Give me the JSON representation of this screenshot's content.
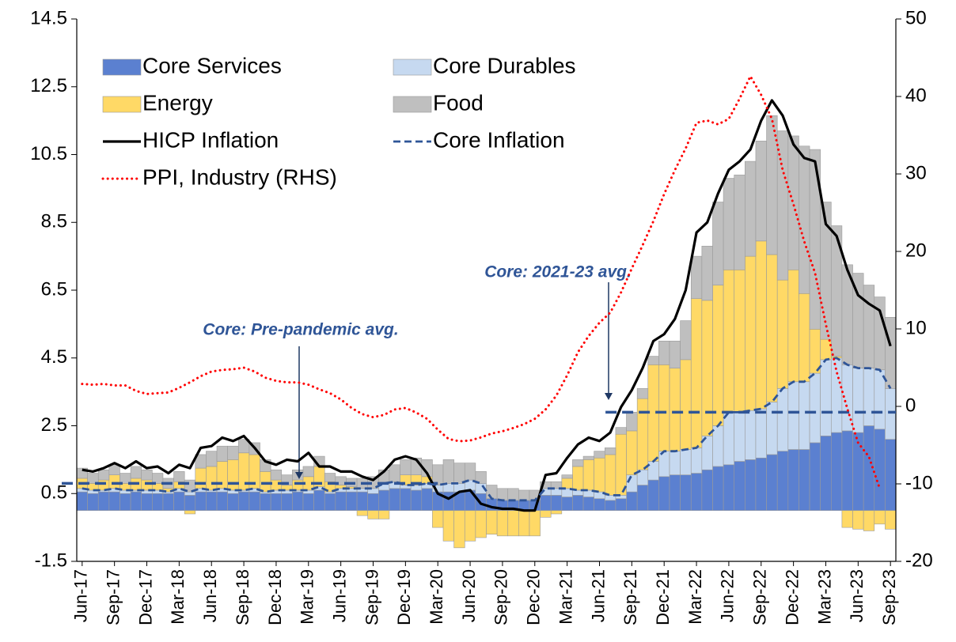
{
  "chart_data": {
    "type": "bar",
    "categories": [
      "Jun-17",
      null,
      null,
      "Sep-17",
      null,
      null,
      "Dec-17",
      null,
      null,
      "Mar-18",
      null,
      null,
      "Jun-18",
      null,
      null,
      "Sep-18",
      null,
      null,
      "Dec-18",
      null,
      null,
      "Mar-19",
      null,
      null,
      "Jun-19",
      null,
      null,
      "Sep-19",
      null,
      null,
      "Dec-19",
      null,
      null,
      "Mar-20",
      null,
      null,
      "Jun-20",
      null,
      null,
      "Sep-20",
      null,
      null,
      "Dec-20",
      null,
      null,
      "Mar-21",
      null,
      null,
      "Jun-21",
      null,
      null,
      "Sep-21",
      null,
      null,
      "Dec-21",
      null,
      null,
      "Mar-22",
      null,
      null,
      "Jun-22",
      null,
      null,
      "Sep-22",
      null,
      null,
      "Dec-22",
      null,
      null,
      "Mar-23",
      null,
      null,
      "Jun-23",
      null,
      null,
      "Sep-23"
    ],
    "series": [
      {
        "name": "Core Services",
        "type": "bar",
        "color": "#5b80d0",
        "values": [
          0.55,
          0.5,
          0.55,
          0.55,
          0.5,
          0.55,
          0.5,
          0.5,
          0.5,
          0.55,
          0.45,
          0.55,
          0.55,
          0.55,
          0.5,
          0.55,
          0.55,
          0.5,
          0.5,
          0.5,
          0.55,
          0.5,
          0.6,
          0.5,
          0.55,
          0.55,
          0.55,
          0.5,
          0.6,
          0.65,
          0.65,
          0.6,
          0.65,
          0.55,
          0.55,
          0.55,
          0.6,
          0.5,
          0.35,
          0.3,
          0.3,
          0.3,
          0.3,
          0.45,
          0.45,
          0.4,
          0.45,
          0.4,
          0.35,
          0.3,
          0.35,
          0.55,
          0.75,
          0.9,
          1.0,
          1.05,
          1.05,
          1.1,
          1.2,
          1.3,
          1.35,
          1.45,
          1.5,
          1.55,
          1.65,
          1.75,
          1.8,
          1.8,
          2.0,
          2.2,
          2.3,
          2.35,
          2.3,
          2.5,
          2.4,
          2.1
        ]
      },
      {
        "name": "Core Durables",
        "type": "bar",
        "color": "#c6d9f0",
        "values": [
          0.1,
          0.1,
          0.05,
          0.1,
          0.1,
          0.05,
          0.1,
          0.1,
          0.05,
          0.1,
          0.1,
          0.1,
          0.05,
          0.1,
          0.1,
          0.05,
          0.1,
          0.05,
          0.1,
          0.1,
          0.05,
          0.1,
          0.1,
          0.05,
          0.1,
          0.1,
          0.1,
          0.15,
          0.2,
          0.2,
          0.1,
          0.15,
          0.15,
          0.2,
          0.25,
          0.25,
          0.3,
          0.3,
          0.0,
          0.0,
          0.0,
          0.0,
          0.0,
          0.2,
          0.2,
          0.25,
          0.15,
          0.2,
          0.2,
          0.15,
          0.1,
          0.5,
          0.45,
          0.55,
          0.75,
          0.7,
          0.75,
          0.75,
          1.0,
          1.2,
          1.55,
          1.45,
          1.45,
          1.45,
          1.55,
          1.85,
          2.0,
          2.0,
          2.05,
          2.25,
          2.2,
          1.95,
          1.9,
          1.7,
          1.75,
          1.5
        ]
      },
      {
        "name": "Energy",
        "type": "bar",
        "color": "#ffd966",
        "values": [
          0.3,
          0.2,
          0.3,
          0.4,
          0.2,
          0.35,
          0.3,
          0.2,
          0.1,
          0.2,
          -0.1,
          0.6,
          0.7,
          0.8,
          0.9,
          1.1,
          1.0,
          0.6,
          0.3,
          0.15,
          0.3,
          0.4,
          0.6,
          0.3,
          0.1,
          0.05,
          -0.15,
          -0.25,
          -0.25,
          0.0,
          0.3,
          0.3,
          0.2,
          -0.5,
          -0.9,
          -1.1,
          -0.9,
          -0.8,
          -0.7,
          -0.75,
          -0.75,
          -0.75,
          -0.75,
          -0.2,
          -0.1,
          0.3,
          0.7,
          0.9,
          1.0,
          1.2,
          1.8,
          1.3,
          2.1,
          2.85,
          2.55,
          2.45,
          2.65,
          4.4,
          4.0,
          4.15,
          4.2,
          4.2,
          4.55,
          4.95,
          4.35,
          3.2,
          3.3,
          2.6,
          1.3,
          0.6,
          0.05,
          -0.5,
          -0.55,
          -0.6,
          -0.4,
          -0.55
        ]
      },
      {
        "name": "Food",
        "type": "bar",
        "color": "#bfbfbf",
        "values": [
          0.3,
          0.3,
          0.3,
          0.3,
          0.3,
          0.35,
          0.3,
          0.3,
          0.3,
          0.3,
          0.35,
          0.4,
          0.45,
          0.45,
          0.4,
          0.4,
          0.35,
          0.35,
          0.3,
          0.3,
          0.3,
          0.3,
          0.3,
          0.25,
          0.25,
          0.25,
          0.3,
          0.35,
          0.4,
          0.5,
          0.45,
          0.5,
          0.5,
          0.6,
          0.7,
          0.6,
          0.5,
          0.35,
          0.4,
          0.35,
          0.35,
          0.3,
          0.3,
          0.2,
          0.2,
          0.1,
          0.2,
          0.1,
          0.2,
          0.2,
          0.2,
          0.55,
          0.3,
          0.25,
          0.7,
          0.8,
          1.15,
          1.25,
          1.6,
          2.45,
          2.7,
          2.8,
          2.8,
          2.95,
          4.1,
          4.4,
          3.95,
          4.35,
          5.3,
          4.05,
          3.85,
          2.95,
          2.8,
          2.45,
          2.15,
          2.1
        ]
      },
      {
        "name": "HICP Inflation",
        "type": "line",
        "color": "#000000",
        "values": [
          1.2,
          1.15,
          1.25,
          1.4,
          1.25,
          1.45,
          1.25,
          1.3,
          1.1,
          1.35,
          1.25,
          1.85,
          1.9,
          2.15,
          2.05,
          2.2,
          1.85,
          1.45,
          1.35,
          1.5,
          1.45,
          1.7,
          1.3,
          1.3,
          1.15,
          1.15,
          1.0,
          0.9,
          1.15,
          1.5,
          1.6,
          1.5,
          1.1,
          0.5,
          0.35,
          0.55,
          0.6,
          0.2,
          0.1,
          0.05,
          0.05,
          0.0,
          0.0,
          1.05,
          1.1,
          1.55,
          1.95,
          2.15,
          2.05,
          2.3,
          3.05,
          3.55,
          4.2,
          5.0,
          5.2,
          5.65,
          6.5,
          8.2,
          8.5,
          9.35,
          10.05,
          10.3,
          10.65,
          11.5,
          12.1,
          11.65,
          10.8,
          10.4,
          10.3,
          8.45,
          8.1,
          7.1,
          6.35,
          6.1,
          5.9,
          4.85
        ]
      },
      {
        "name": "Core Inflation",
        "type": "line",
        "dash": true,
        "color": "#2f5597",
        "values": [
          0.65,
          0.6,
          0.6,
          0.65,
          0.6,
          0.6,
          0.6,
          0.6,
          0.55,
          0.65,
          0.55,
          0.65,
          0.6,
          0.65,
          0.6,
          0.6,
          0.65,
          0.55,
          0.6,
          0.6,
          0.6,
          0.6,
          0.7,
          0.55,
          0.65,
          0.65,
          0.65,
          0.65,
          0.8,
          0.85,
          0.75,
          0.75,
          0.8,
          0.75,
          0.8,
          0.8,
          0.9,
          0.8,
          0.35,
          0.3,
          0.3,
          0.3,
          0.3,
          0.65,
          0.65,
          0.65,
          0.6,
          0.6,
          0.55,
          0.45,
          0.45,
          1.05,
          1.2,
          1.45,
          1.75,
          1.75,
          1.8,
          1.85,
          2.2,
          2.5,
          2.9,
          2.9,
          2.95,
          3.0,
          3.2,
          3.6,
          3.8,
          3.8,
          4.05,
          4.45,
          4.5,
          4.3,
          4.2,
          4.2,
          4.15,
          3.6
        ]
      },
      {
        "name": "PPI, Industry (RHS)",
        "type": "line",
        "dotted": true,
        "axis": "y2",
        "color": "#ff0000",
        "values": [
          2.9,
          2.8,
          2.9,
          2.7,
          2.7,
          2.0,
          1.6,
          1.7,
          1.8,
          2.4,
          3.1,
          3.9,
          4.5,
          4.7,
          4.8,
          5.0,
          4.5,
          3.7,
          3.3,
          3.1,
          3.1,
          2.8,
          2.2,
          1.7,
          0.9,
          -0.2,
          -1.0,
          -1.4,
          -1.1,
          -0.4,
          -0.2,
          -0.8,
          -1.6,
          -3.0,
          -4.2,
          -4.5,
          -4.4,
          -4.0,
          -3.5,
          -3.2,
          -2.8,
          -2.3,
          -1.6,
          -0.4,
          1.4,
          4.0,
          7.0,
          9.1,
          10.8,
          12.1,
          14.7,
          17.8,
          20.8,
          23.9,
          27.4,
          30.5,
          33.3,
          36.6,
          36.9,
          36.4,
          37.1,
          39.7,
          42.6,
          40.2,
          37.1,
          30.5,
          26.1,
          21.3,
          17.2,
          10.6,
          4.5,
          -0.3,
          -4.7,
          -6.5,
          -10.6,
          null
        ]
      }
    ],
    "ylim": [
      -1.5,
      14.5
    ],
    "yticks": [
      -1.5,
      0.5,
      2.5,
      4.5,
      6.5,
      8.5,
      10.5,
      12.5,
      14.5
    ],
    "y2lim": [
      -20,
      50
    ],
    "y2ticks": [
      -20,
      -10,
      0,
      10,
      20,
      30,
      40,
      50
    ],
    "legend": "top-left",
    "reference_lines": [
      {
        "label": "Core: Pre-pandemic avg.",
        "value": 0.8,
        "color": "#2f5597"
      },
      {
        "label": "Core: 2021-23 avg.",
        "value": 2.9,
        "color": "#2f5597"
      }
    ]
  }
}
